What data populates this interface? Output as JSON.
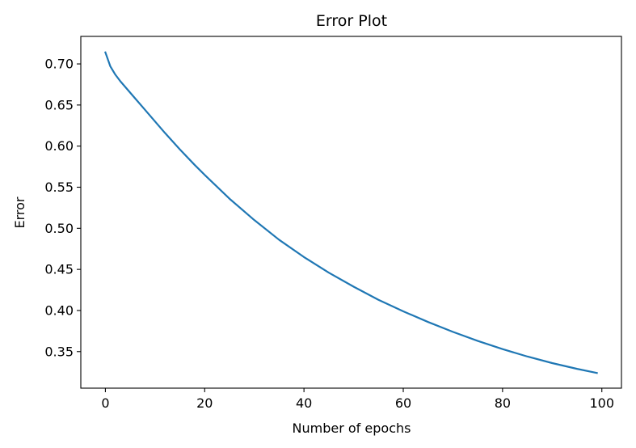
{
  "chart_data": {
    "type": "line",
    "title": "Error Plot",
    "xlabel": "Number of epochs",
    "ylabel": "Error",
    "xlim": [
      -4.95,
      103.95
    ],
    "ylim": [
      0.3055,
      0.7335
    ],
    "xticks": [
      0,
      20,
      40,
      60,
      80,
      100
    ],
    "xtick_labels": [
      "0",
      "20",
      "40",
      "60",
      "80",
      "100"
    ],
    "yticks": [
      0.35,
      0.4,
      0.45,
      0.5,
      0.55,
      0.6,
      0.65,
      0.7
    ],
    "ytick_labels": [
      "0.35",
      "0.40",
      "0.45",
      "0.50",
      "0.55",
      "0.60",
      "0.65",
      "0.70"
    ],
    "grid": false,
    "legend": "none",
    "line_color": "#1f77b4",
    "series": [
      {
        "x": [
          0,
          1,
          2,
          3,
          4,
          5,
          6,
          8,
          10,
          12,
          15,
          18,
          20,
          25,
          30,
          35,
          40,
          45,
          50,
          55,
          60,
          65,
          70,
          75,
          80,
          85,
          90,
          95,
          99
        ],
        "values": [
          0.714,
          0.697,
          0.687,
          0.679,
          0.672,
          0.665,
          0.658,
          0.644,
          0.63,
          0.616,
          0.596,
          0.577,
          0.565,
          0.536,
          0.51,
          0.486,
          0.465,
          0.446,
          0.429,
          0.413,
          0.399,
          0.386,
          0.374,
          0.363,
          0.353,
          0.344,
          0.336,
          0.329,
          0.324
        ]
      }
    ]
  }
}
